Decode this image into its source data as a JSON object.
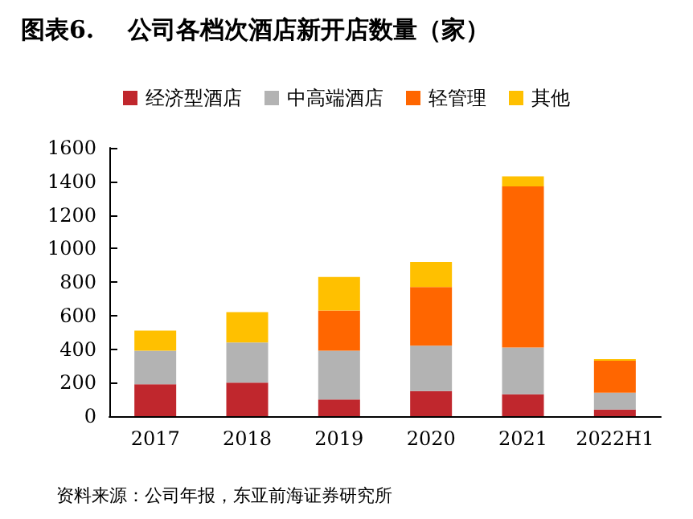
{
  "chart_data": {
    "type": "bar",
    "title": "图表6.    公司各档次酒店新开店数量（家）",
    "stacked": true,
    "categories": [
      "2017",
      "2018",
      "2019",
      "2020",
      "2021",
      "2022H1"
    ],
    "series": [
      {
        "name": "经济型酒店",
        "color": "#c0272d",
        "values": [
          190,
          200,
          100,
          150,
          130,
          40
        ]
      },
      {
        "name": "中高端酒店",
        "color": "#b3b3b3",
        "values": [
          200,
          240,
          290,
          270,
          280,
          100
        ]
      },
      {
        "name": "轻管理",
        "color": "#ff6600",
        "values": [
          null,
          null,
          240,
          350,
          960,
          190
        ]
      },
      {
        "name": "其他",
        "color": "#ffc000",
        "values": [
          120,
          180,
          200,
          150,
          60,
          10
        ]
      }
    ],
    "ylim": [
      0,
      1600
    ],
    "yticks": [
      0,
      200,
      400,
      600,
      800,
      1000,
      1200,
      1400,
      1600
    ],
    "grid": false,
    "legend": "top",
    "annotations": [
      "资料来源：公司年报，东亚前海证券研究所"
    ]
  }
}
